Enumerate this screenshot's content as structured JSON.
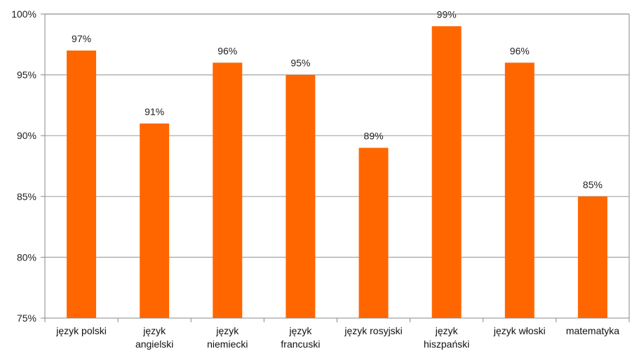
{
  "chart_data": {
    "type": "bar",
    "categories": [
      [
        "język polski"
      ],
      [
        "język",
        "angielski"
      ],
      [
        "język",
        "niemiecki"
      ],
      [
        "język",
        "francuski"
      ],
      [
        "język rosyjski"
      ],
      [
        "język",
        "hiszpański"
      ],
      [
        "język włoski"
      ],
      [
        "matematyka"
      ]
    ],
    "values": [
      97,
      91,
      96,
      95,
      89,
      99,
      96,
      85
    ],
    "data_labels": [
      "97%",
      "91%",
      "96%",
      "95%",
      "89%",
      "99%",
      "96%",
      "85%"
    ],
    "y_ticks": [
      75,
      80,
      85,
      90,
      95,
      100
    ],
    "y_tick_labels": [
      "75%",
      "80%",
      "85%",
      "90%",
      "95%",
      "100%"
    ],
    "ylim": [
      75,
      100
    ],
    "grid": true,
    "legend": "none",
    "bar_color": "#FF6600",
    "grid_color": "#A6A6A6"
  }
}
